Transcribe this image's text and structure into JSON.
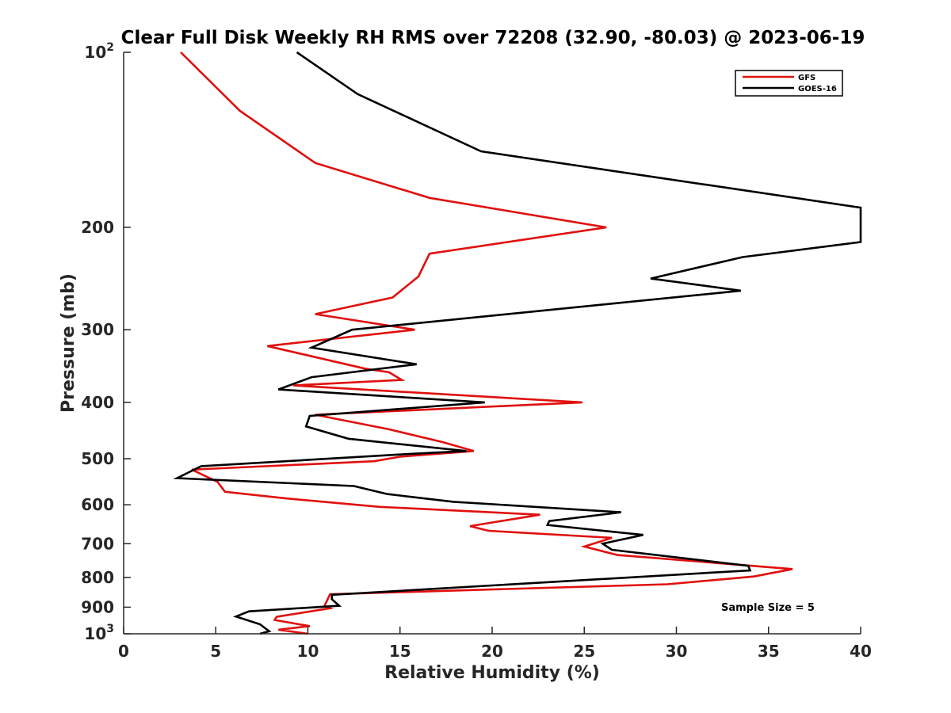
{
  "chart_data": {
    "type": "line",
    "title": "Clear Full Disk Weekly RH RMS over 72208 (32.90, -80.03) @ 2023-06-19",
    "xlabel": "Relative Humidity (%)",
    "ylabel": "Pressure (mb)",
    "xlim": [
      0,
      40
    ],
    "ylim": [
      100,
      1000
    ],
    "y_scale": "log",
    "y_reversed": true,
    "grid": false,
    "legend_position": "top-right",
    "annotation": "Sample Size = 5",
    "x_ticks": [
      {
        "value": 0,
        "label": "0"
      },
      {
        "value": 5,
        "label": "5"
      },
      {
        "value": 10,
        "label": "10"
      },
      {
        "value": 15,
        "label": "15"
      },
      {
        "value": 20,
        "label": "20"
      },
      {
        "value": 25,
        "label": "25"
      },
      {
        "value": 30,
        "label": "30"
      },
      {
        "value": 35,
        "label": "35"
      },
      {
        "value": 40,
        "label": "40"
      }
    ],
    "y_ticks": [
      {
        "value": 100,
        "base": "10",
        "exp": "2"
      },
      {
        "value": 200,
        "base": "200",
        "exp": ""
      },
      {
        "value": 300,
        "base": "300",
        "exp": ""
      },
      {
        "value": 400,
        "base": "400",
        "exp": ""
      },
      {
        "value": 500,
        "base": "500",
        "exp": ""
      },
      {
        "value": 600,
        "base": "600",
        "exp": ""
      },
      {
        "value": 700,
        "base": "700",
        "exp": ""
      },
      {
        "value": 800,
        "base": "800",
        "exp": ""
      },
      {
        "value": 900,
        "base": "900",
        "exp": ""
      },
      {
        "value": 1000,
        "base": "10",
        "exp": "3"
      }
    ],
    "series": [
      {
        "name": "GFS",
        "color": "#e0100e",
        "points": [
          [
            3.1,
            100
          ],
          [
            6.3,
            126
          ],
          [
            10.4,
            155
          ],
          [
            16.6,
            178
          ],
          [
            26.2,
            200
          ],
          [
            16.6,
            222
          ],
          [
            16.0,
            243
          ],
          [
            14.6,
            264
          ],
          [
            10.4,
            282
          ],
          [
            15.8,
            300
          ],
          [
            7.8,
            320
          ],
          [
            13.1,
            350
          ],
          [
            14.4,
            355
          ],
          [
            15.1,
            366
          ],
          [
            9.2,
            374
          ],
          [
            24.9,
            400
          ],
          [
            10.4,
            420
          ],
          [
            14.4,
            445
          ],
          [
            17.3,
            468
          ],
          [
            19.0,
            485
          ],
          [
            15.0,
            496
          ],
          [
            13.6,
            505
          ],
          [
            3.7,
            522
          ],
          [
            5.1,
            548
          ],
          [
            5.5,
            570
          ],
          [
            8.8,
            585
          ],
          [
            13.9,
            605
          ],
          [
            22.6,
            624
          ],
          [
            18.8,
            653
          ],
          [
            19.8,
            665
          ],
          [
            26.5,
            684
          ],
          [
            25.0,
            708
          ],
          [
            26.8,
            732
          ],
          [
            36.3,
            774
          ],
          [
            34.2,
            797
          ],
          [
            29.5,
            822
          ],
          [
            11.2,
            855
          ],
          [
            10.9,
            896
          ],
          [
            11.2,
            904
          ],
          [
            8.3,
            935
          ],
          [
            8.2,
            947
          ],
          [
            10.1,
            970
          ],
          [
            8.4,
            984
          ],
          [
            10.0,
            1000
          ]
        ]
      },
      {
        "name": "GOES-16",
        "color": "#000000",
        "points": [
          [
            9.4,
            100
          ],
          [
            12.7,
            118
          ],
          [
            19.4,
            148
          ],
          [
            40.0,
            185
          ],
          [
            40.0,
            212
          ],
          [
            33.6,
            225
          ],
          [
            28.6,
            245
          ],
          [
            33.5,
            257
          ],
          [
            12.4,
            300
          ],
          [
            10.2,
            322
          ],
          [
            15.9,
            344
          ],
          [
            10.2,
            362
          ],
          [
            8.4,
            380
          ],
          [
            19.6,
            400
          ],
          [
            10.1,
            422
          ],
          [
            9.9,
            440
          ],
          [
            12.2,
            462
          ],
          [
            18.6,
            485
          ],
          [
            14.8,
            492
          ],
          [
            4.2,
            515
          ],
          [
            2.9,
            540
          ],
          [
            12.5,
            557
          ],
          [
            14.3,
            575
          ],
          [
            17.9,
            593
          ],
          [
            27.0,
            618
          ],
          [
            23.1,
            640
          ],
          [
            23.0,
            650
          ],
          [
            28.2,
            676
          ],
          [
            26.0,
            700
          ],
          [
            26.5,
            717
          ],
          [
            33.9,
            764
          ],
          [
            34.0,
            778
          ],
          [
            11.3,
            857
          ],
          [
            11.3,
            872
          ],
          [
            11.7,
            895
          ],
          [
            6.8,
            915
          ],
          [
            6.1,
            934
          ],
          [
            7.4,
            963
          ],
          [
            7.9,
            990
          ],
          [
            7.4,
            1000
          ]
        ]
      }
    ]
  }
}
